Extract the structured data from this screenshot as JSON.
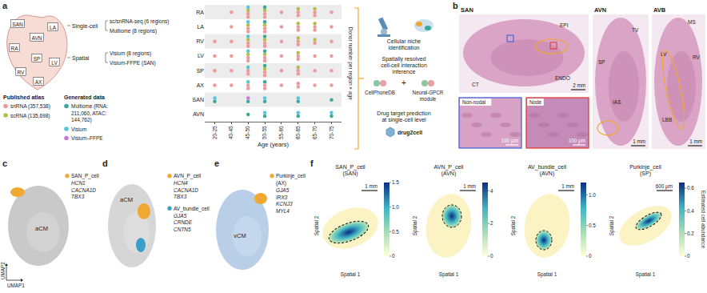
{
  "chart_data": {
    "type": "dot_matrix",
    "x_label": "Age (years)",
    "y_label": "Donor number per region × age",
    "rows": [
      "RA",
      "LA",
      "RV",
      "LV",
      "SP",
      "AX",
      "SAN",
      "AVN"
    ],
    "categories": [
      "20-25",
      "40-45",
      "45-50",
      "50-55",
      "55-60",
      "60-65",
      "65-70",
      "70-75"
    ],
    "series": [
      {
        "name": "snRNA (357,538)",
        "group": "Published atlas",
        "color": "#ec9a9a",
        "values": [
          [
            0,
            1,
            2,
            2,
            1,
            2,
            2,
            1
          ],
          [
            0,
            1,
            2,
            2,
            1,
            2,
            2,
            1
          ],
          [
            1,
            1,
            2,
            2,
            1,
            2,
            1,
            1
          ],
          [
            1,
            1,
            2,
            2,
            1,
            2,
            1,
            1
          ],
          [
            1,
            1,
            2,
            2,
            1,
            2,
            1,
            1
          ],
          [
            1,
            1,
            2,
            2,
            1,
            2,
            1,
            1
          ],
          [
            0,
            0,
            0,
            0,
            0,
            0,
            0,
            0
          ],
          [
            0,
            0,
            0,
            0,
            0,
            0,
            0,
            0
          ]
        ]
      },
      {
        "name": "scRNA (135,698)",
        "group": "Published atlas",
        "color": "#b7bd4b",
        "values": [
          [
            0,
            0,
            1,
            1,
            0,
            1,
            1,
            0
          ],
          [
            0,
            0,
            1,
            1,
            0,
            1,
            1,
            0
          ],
          [
            0,
            0,
            1,
            1,
            0,
            1,
            1,
            0
          ],
          [
            0,
            0,
            1,
            1,
            0,
            1,
            0,
            0
          ],
          [
            0,
            0,
            0,
            1,
            0,
            1,
            0,
            0
          ],
          [
            0,
            0,
            0,
            0,
            0,
            0,
            0,
            0
          ],
          [
            0,
            0,
            0,
            0,
            0,
            0,
            0,
            0
          ],
          [
            0,
            0,
            0,
            0,
            0,
            0,
            0,
            0
          ]
        ]
      },
      {
        "name": "Multiome (RNA: 211,060, ATAC: 144,762)",
        "group": "Generated data",
        "color": "#3aa89a",
        "values": [
          [
            0,
            0,
            0,
            1,
            0,
            0,
            0,
            0
          ],
          [
            0,
            0,
            0,
            1,
            0,
            0,
            0,
            0
          ],
          [
            0,
            0,
            0,
            1,
            0,
            0,
            0,
            0
          ],
          [
            0,
            0,
            0,
            1,
            0,
            0,
            0,
            0
          ],
          [
            0,
            0,
            0,
            1,
            0,
            0,
            0,
            0
          ],
          [
            0,
            0,
            0,
            1,
            0,
            0,
            0,
            0
          ],
          [
            1,
            0,
            1,
            1,
            0,
            1,
            0,
            1
          ],
          [
            0,
            0,
            1,
            1,
            0,
            1,
            0,
            1
          ]
        ]
      },
      {
        "name": "Visium",
        "group": "Generated data",
        "color": "#56c5dc",
        "values": [
          [
            0,
            0,
            1,
            0,
            0,
            0,
            0,
            0
          ],
          [
            0,
            0,
            1,
            0,
            0,
            0,
            0,
            0
          ],
          [
            0,
            0,
            1,
            0,
            0,
            0,
            0,
            0
          ],
          [
            0,
            0,
            1,
            0,
            0,
            0,
            0,
            0
          ],
          [
            0,
            0,
            1,
            0,
            0,
            0,
            0,
            0
          ],
          [
            0,
            0,
            1,
            0,
            0,
            0,
            0,
            0
          ],
          [
            1,
            0,
            0,
            1,
            0,
            1,
            0,
            0
          ],
          [
            0,
            0,
            0,
            1,
            0,
            1,
            0,
            1
          ]
        ]
      },
      {
        "name": "Visium–FFPE",
        "group": "Generated data",
        "color": "#c97ad6",
        "values": [
          [
            0,
            0,
            0,
            0,
            0,
            0,
            0,
            0
          ],
          [
            0,
            0,
            0,
            0,
            0,
            0,
            0,
            0
          ],
          [
            0,
            0,
            0,
            0,
            0,
            0,
            0,
            0
          ],
          [
            0,
            0,
            0,
            0,
            0,
            0,
            0,
            0
          ],
          [
            0,
            0,
            0,
            0,
            0,
            0,
            0,
            0
          ],
          [
            0,
            0,
            0,
            0,
            0,
            0,
            0,
            0
          ],
          [
            0,
            0,
            1,
            0,
            0,
            0,
            0,
            0
          ],
          [
            0,
            0,
            0,
            0,
            0,
            0,
            0,
            0
          ]
        ]
      }
    ]
  },
  "figure": {
    "a": {
      "label": "a",
      "regions": [
        "SAN",
        "AVN",
        "RA",
        "LA",
        "SP",
        "LV",
        "RV",
        "AX"
      ],
      "modalities": [
        {
          "heading": "Single-cell",
          "items": [
            "sc/snRNA-seq (6 regions)",
            "Multiome (8 regions)"
          ]
        },
        {
          "heading": "Spatial",
          "items": [
            "Visium (8 regions)",
            "Visium-FFPE (SAN)"
          ]
        }
      ],
      "workflow": [
        {
          "text": "Cellular niche identification",
          "tools": []
        },
        {
          "text": "Spatially resolved cell-cell interaction inference",
          "tools": [
            "CellPhoneDB",
            "+",
            "Neural-GPCR module"
          ]
        },
        {
          "text": "Drug target prediction at single-cell level",
          "tools": [
            "drug2cell"
          ]
        }
      ]
    },
    "b": {
      "label": "b",
      "panels": [
        {
          "title": "SAN",
          "labels": [
            "EPI",
            "ENDO",
            "CT"
          ],
          "scale_bar": "2 mm",
          "insets": [
            {
              "title": "Non-nodal",
              "scale_bar": "100 μm"
            },
            {
              "title": "Node",
              "scale_bar": "100 μm"
            }
          ]
        },
        {
          "title": "AVN",
          "labels": [
            "TV",
            "SP",
            "IAS"
          ],
          "scale_bar": "1 mm",
          "insets": []
        },
        {
          "title": "AVB",
          "labels": [
            "MS",
            "LV",
            "RV",
            "LBB"
          ],
          "scale_bar": "1 mm",
          "insets": []
        }
      ]
    },
    "c": {
      "label": "c",
      "background": "aCM",
      "axes": [
        "UMAP1",
        "UMAP2"
      ],
      "highlights": [
        {
          "name": "SAN_P_cell",
          "color": "#f0a830",
          "genes": [
            "HCN1",
            "CACNA1D",
            "TBX3"
          ]
        }
      ]
    },
    "d": {
      "label": "d",
      "background": "aCM",
      "axes": [],
      "highlights": [
        {
          "name": "AVN_P_cell",
          "color": "#f0a830",
          "genes": [
            "HCN4",
            "CACNA1D",
            "TBX3"
          ]
        },
        {
          "name": "AV_bundle_cell",
          "color": "#3a9fc8",
          "genes": [
            "GJA5",
            "CRNDE",
            "CNTN5"
          ]
        }
      ]
    },
    "e": {
      "label": "e",
      "background": "vCM",
      "axes": [],
      "highlights": [
        {
          "name": "Purkinje_cell",
          "region": "(AX)",
          "color": "#f0a830",
          "genes": [
            "GJA5",
            "IRX3",
            "KCNJ3",
            "MYL4"
          ]
        }
      ]
    },
    "f": {
      "label": "f",
      "axes": [
        "Spatial 1",
        "Spatial 2"
      ],
      "colorbar_title": "Estimated cell abundance",
      "maps": [
        {
          "title": "SAN_P_cell",
          "region": "(SAN)",
          "scale_bar": "1 mm",
          "colorbar": {
            "range": [
              0,
              1.5
            ],
            "ticks": [
              0,
              0.5,
              {
                "value": 1,
                "label": "1.0"
              },
              1.5
            ]
          }
        },
        {
          "title": "AVN_P_cell",
          "region": "(AVN)",
          "scale_bar": "1 mm",
          "colorbar": {
            "range": [
              0,
              4.5
            ],
            "ticks": [
              0,
              2,
              4
            ]
          }
        },
        {
          "title": "AV_bundle_cell",
          "region": "(AVN)",
          "scale_bar": "1 mm",
          "colorbar": {
            "range": [
              0,
              1.2
            ],
            "ticks": [
              0,
              0.5,
              {
                "value": 1,
                "label": "1.0"
              }
            ]
          }
        },
        {
          "title": "Purkinje_cell",
          "region": "(SP)",
          "scale_bar": "600 μm",
          "colorbar": {
            "range": [
              0,
              0.65
            ],
            "ticks": [
              0,
              0.2,
              0.4,
              0.6
            ]
          }
        }
      ]
    }
  }
}
